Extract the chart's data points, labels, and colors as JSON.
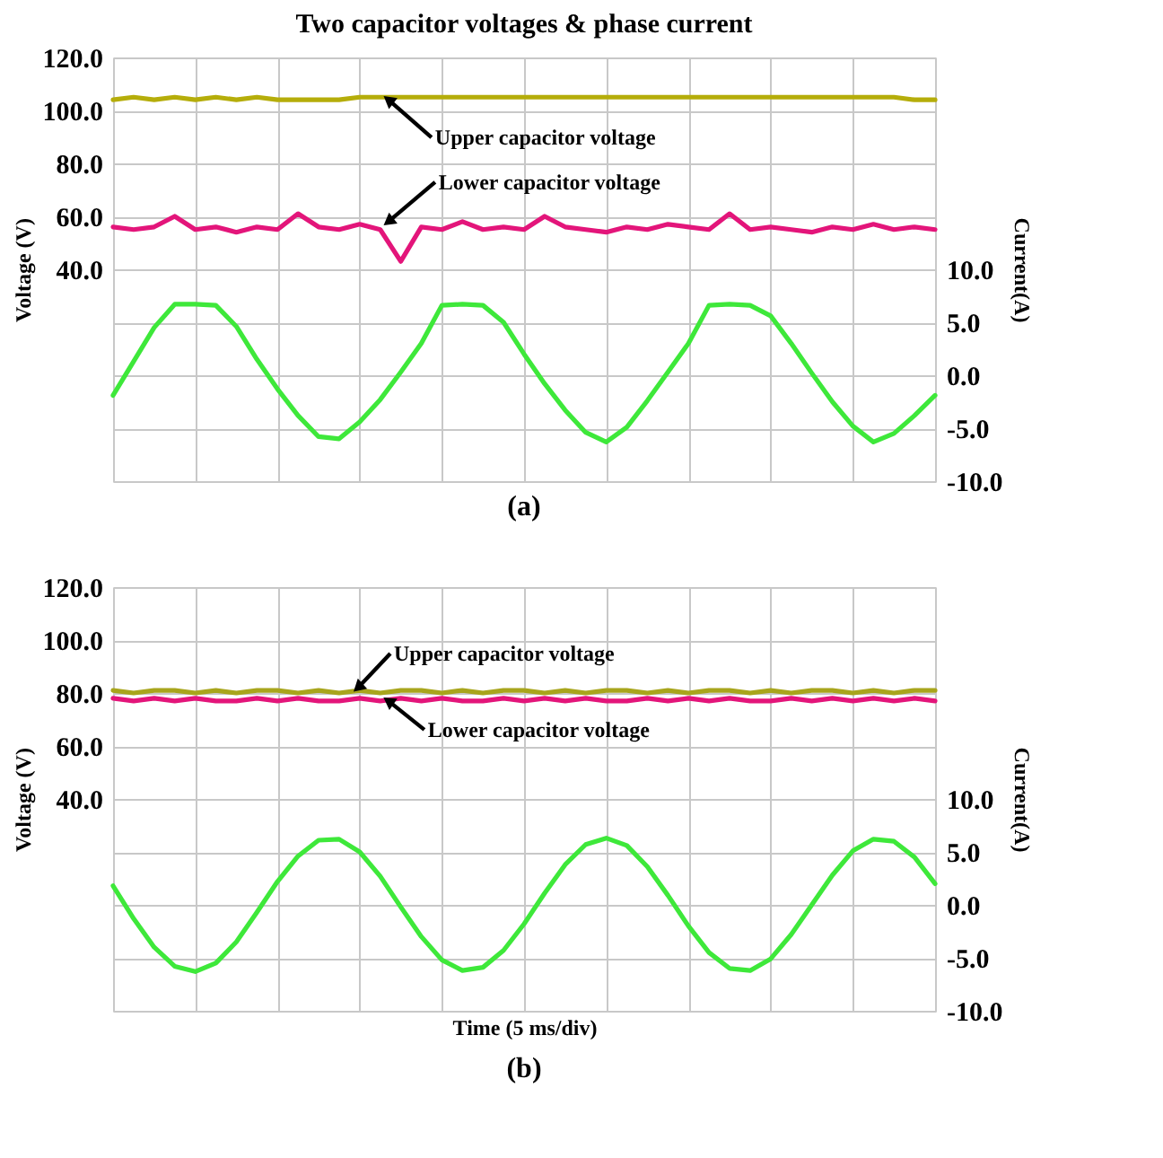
{
  "chart_data": [
    {
      "type": "line",
      "title": "Two capacitor voltages & phase current",
      "ylabel": "Voltage (V)",
      "y2label": "Current(A)",
      "categories": [
        null,
        null,
        null,
        null,
        null,
        null,
        null,
        null,
        null,
        null,
        null,
        null,
        null,
        null,
        null,
        null,
        null,
        null,
        null,
        null,
        null,
        null,
        null,
        null,
        null,
        null,
        null,
        null,
        null,
        null,
        null,
        null,
        null,
        null,
        null,
        null,
        null,
        null,
        null,
        null,
        null
      ],
      "series": [
        {
          "color": "#b5ad0a",
          "values": [
            104,
            105,
            104,
            105,
            104,
            105,
            104,
            105,
            104,
            104,
            104,
            104,
            105,
            105,
            105,
            105,
            105,
            105,
            105,
            105,
            105,
            105,
            105,
            105,
            105,
            105,
            105,
            105,
            105,
            105,
            105,
            105,
            105,
            105,
            105,
            105,
            105,
            105,
            105,
            104,
            104
          ]
        },
        {
          "color": "#e3157a",
          "values": [
            56,
            55,
            56,
            60,
            55,
            56,
            54,
            56,
            55,
            61,
            56,
            55,
            57,
            55,
            43,
            56,
            55,
            58,
            55,
            56,
            55,
            60,
            56,
            55,
            54,
            56,
            55,
            57,
            56,
            55,
            61,
            55,
            56,
            55,
            54,
            56,
            55,
            57,
            55,
            56,
            55
          ]
        },
        {
          "color": "#3ee83a",
          "axis": "y2",
          "values": [
            -1.9,
            1.3,
            4.5,
            6.7,
            6.7,
            6.6,
            4.6,
            1.5,
            -1.3,
            -3.8,
            -5.8,
            -6.0,
            -4.4,
            -2.3,
            0.3,
            3.0,
            6.6,
            6.7,
            6.6,
            5.0,
            2.0,
            -0.8,
            -3.3,
            -5.4,
            -6.3,
            -4.9,
            -2.4,
            0.3,
            3.0,
            6.6,
            6.7,
            6.6,
            5.6,
            3.0,
            0.2,
            -2.5,
            -4.8,
            -6.3,
            -5.5,
            -3.8,
            -1.9
          ]
        }
      ],
      "ylim": [
        -40,
        120
      ],
      "yticks": [
        {
          "value": 40,
          "label": "40.0"
        },
        {
          "value": 60,
          "label": "60.0"
        },
        {
          "value": 80,
          "label": "80.0"
        },
        {
          "value": 100,
          "label": "100.0"
        },
        {
          "value": 120,
          "label": "120.0"
        }
      ],
      "y2lim": [
        -10,
        30
      ],
      "y2ticks": [
        {
          "value": -10,
          "label": "-10.0"
        },
        {
          "value": -5,
          "label": "-5.0"
        },
        {
          "value": 0,
          "label": "0.0"
        },
        {
          "value": 5,
          "label": "5.0"
        },
        {
          "value": 10,
          "label": "10.0"
        }
      ],
      "annotations": [
        {
          "text": "Upper capacitor voltage",
          "y": 104
        },
        {
          "text": "Lower capacitor voltage",
          "y": 58
        },
        "(a)"
      ],
      "grid": true
    },
    {
      "type": "line",
      "xlabel": "Time (5 ms/div)",
      "ylabel": "Voltage (V)",
      "y2label": "Current(A)",
      "categories": [
        null,
        null,
        null,
        null,
        null,
        null,
        null,
        null,
        null,
        null,
        null,
        null,
        null,
        null,
        null,
        null,
        null,
        null,
        null,
        null,
        null,
        null,
        null,
        null,
        null,
        null,
        null,
        null,
        null,
        null,
        null,
        null,
        null,
        null,
        null,
        null,
        null,
        null,
        null,
        null,
        null
      ],
      "series": [
        {
          "color": "#e3157a",
          "values": [
            78,
            77,
            78,
            77,
            78,
            77,
            77,
            78,
            77,
            78,
            77,
            77,
            78,
            77,
            78,
            77,
            78,
            77,
            77,
            78,
            77,
            78,
            77,
            78,
            77,
            77,
            78,
            77,
            78,
            77,
            78,
            77,
            77,
            78,
            77,
            78,
            77,
            78,
            77,
            78,
            77
          ]
        },
        {
          "color": "#a8a51c",
          "values": [
            81,
            80,
            81,
            81,
            80,
            81,
            80,
            81,
            81,
            80,
            81,
            80,
            81,
            80,
            81,
            81,
            80,
            81,
            80,
            81,
            81,
            80,
            81,
            80,
            81,
            81,
            80,
            81,
            80,
            81,
            81,
            80,
            81,
            80,
            81,
            81,
            80,
            81,
            80,
            81,
            81
          ]
        },
        {
          "color": "#3ee83a",
          "axis": "y2",
          "values": [
            1.8,
            -1.3,
            -4.0,
            -5.8,
            -6.3,
            -5.5,
            -3.5,
            -0.7,
            2.2,
            4.6,
            6.1,
            6.2,
            5.0,
            2.7,
            -0.2,
            -3.0,
            -5.2,
            -6.2,
            -5.9,
            -4.3,
            -1.8,
            1.1,
            3.8,
            5.7,
            6.3,
            5.6,
            3.6,
            0.9,
            -2.0,
            -4.5,
            -6.0,
            -6.2,
            -5.1,
            -2.8,
            0.0,
            2.8,
            5.1,
            6.2,
            6.0,
            4.5,
            2.0
          ]
        }
      ],
      "ylim": [
        -40,
        120
      ],
      "yticks": [
        {
          "value": 40,
          "label": "40.0"
        },
        {
          "value": 60,
          "label": "60.0"
        },
        {
          "value": 80,
          "label": "80.0"
        },
        {
          "value": 100,
          "label": "100.0"
        },
        {
          "value": 120,
          "label": "120.0"
        }
      ],
      "y2lim": [
        -10,
        30
      ],
      "y2ticks": [
        {
          "value": -10,
          "label": "-10.0"
        },
        {
          "value": -5,
          "label": "-5.0"
        },
        {
          "value": 0,
          "label": "0.0"
        },
        {
          "value": 5,
          "label": "5.0"
        },
        {
          "value": 10,
          "label": "10.0"
        }
      ],
      "annotations": [
        {
          "text": "Upper capacitor voltage",
          "y": 82
        },
        {
          "text": "Lower capacitor voltage",
          "y": 77
        },
        "(b)"
      ],
      "grid": true
    }
  ]
}
